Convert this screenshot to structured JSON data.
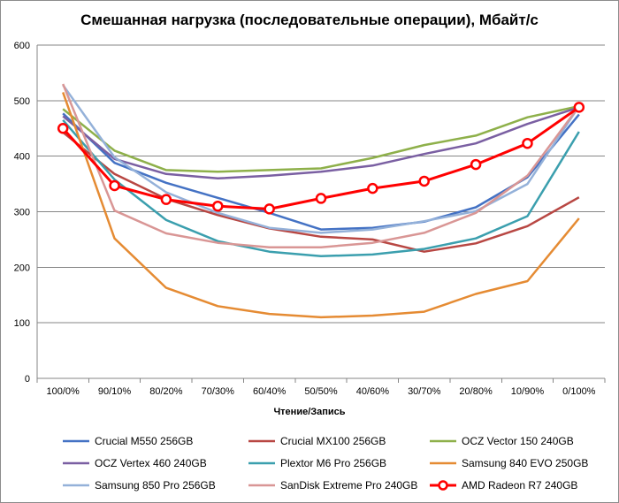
{
  "chart_data": {
    "type": "line",
    "title": "Смешанная нагрузка (последовательные операции), Мбайт/с",
    "xlabel": "Чтение/Запись",
    "ylabel": "",
    "categories": [
      "100/0%",
      "90/10%",
      "80/20%",
      "70/30%",
      "60/40%",
      "50/50%",
      "40/60%",
      "30/70%",
      "20/80%",
      "10/90%",
      "0/100%"
    ],
    "ylim": [
      0,
      600
    ],
    "yticks": [
      "0",
      "100",
      "200",
      "300",
      "400",
      "500",
      "600"
    ],
    "grid": "horizontal",
    "legend_position": "bottom",
    "series": [
      {
        "name": "Crucial M550 256GB",
        "color": "#4472c4",
        "values": [
          477,
          388,
          352,
          325,
          298,
          268,
          271,
          282,
          308,
          362,
          475
        ],
        "marker": "none"
      },
      {
        "name": "Crucial MX100 256GB",
        "color": "#b84743",
        "values": [
          443,
          368,
          323,
          294,
          270,
          255,
          250,
          228,
          243,
          274,
          326
        ],
        "marker": "none"
      },
      {
        "name": "OCZ Vector 150 240GB",
        "color": "#8eb04a",
        "values": [
          485,
          410,
          375,
          372,
          375,
          378,
          397,
          420,
          437,
          470,
          490
        ],
        "marker": "none"
      },
      {
        "name": "OCZ Vertex 460 240GB",
        "color": "#7a5fa2",
        "values": [
          472,
          395,
          368,
          360,
          365,
          372,
          383,
          404,
          423,
          458,
          488
        ],
        "marker": "none"
      },
      {
        "name": "Plextor M6 Pro 256GB",
        "color": "#3b9fae",
        "values": [
          465,
          358,
          285,
          247,
          228,
          220,
          223,
          233,
          252,
          292,
          444
        ],
        "marker": "none"
      },
      {
        "name": "Samsung 840 EVO 250GB",
        "color": "#e58b33",
        "values": [
          515,
          252,
          163,
          130,
          116,
          110,
          113,
          120,
          152,
          175,
          288
        ],
        "marker": "none"
      },
      {
        "name": "Samsung 850 Pro 256GB",
        "color": "#94b1d9",
        "values": [
          528,
          398,
          335,
          298,
          271,
          262,
          268,
          283,
          301,
          350,
          490
        ],
        "marker": "none"
      },
      {
        "name": "SanDisk Extreme Pro 240GB",
        "color": "#d99695",
        "values": [
          530,
          302,
          261,
          244,
          236,
          236,
          244,
          262,
          298,
          365,
          490
        ],
        "marker": "none"
      },
      {
        "name": "AMD Radeon R7 240GB",
        "color": "#ff0000",
        "values": [
          450,
          347,
          322,
          310,
          305,
          324,
          342,
          355,
          385,
          423,
          488
        ],
        "marker": "circle"
      }
    ]
  }
}
